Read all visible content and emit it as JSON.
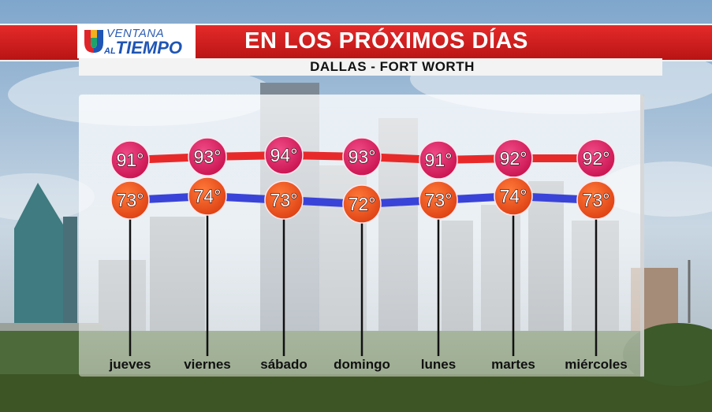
{
  "header": {
    "logo_line1": "VENTANA",
    "logo_line2_prefix": "AL",
    "logo_line2_main": "TIEMPO",
    "title": "EN LOS PRÓXIMOS DÍAS",
    "location": "DALLAS - FORT WORTH"
  },
  "colors": {
    "high_line": "#e8292a",
    "high_circle": "#d81b61",
    "low_line": "#3a43d8",
    "low_circle": "#ea4f1e",
    "header_red": "#d41f1f",
    "logo_blue": "#1f55b5"
  },
  "chart_data": {
    "type": "line",
    "title": "EN LOS PRÓXIMOS DÍAS",
    "subtitle": "DALLAS - FORT WORTH",
    "categories": [
      "jueves",
      "viernes",
      "sábado",
      "domingo",
      "lunes",
      "martes",
      "miércoles"
    ],
    "series": [
      {
        "key": "high",
        "values": [
          91,
          93,
          94,
          93,
          91,
          92,
          92
        ],
        "labels": [
          "91°",
          "93°",
          "94°",
          "93°",
          "91°",
          "92°",
          "92°"
        ]
      },
      {
        "key": "low",
        "values": [
          73,
          74,
          73,
          72,
          73,
          74,
          73
        ],
        "labels": [
          "73°",
          "74°",
          "73°",
          "72°",
          "73°",
          "74°",
          "73°"
        ]
      }
    ],
    "xlabel": "",
    "ylabel": "",
    "grid": false,
    "legend": "none"
  }
}
